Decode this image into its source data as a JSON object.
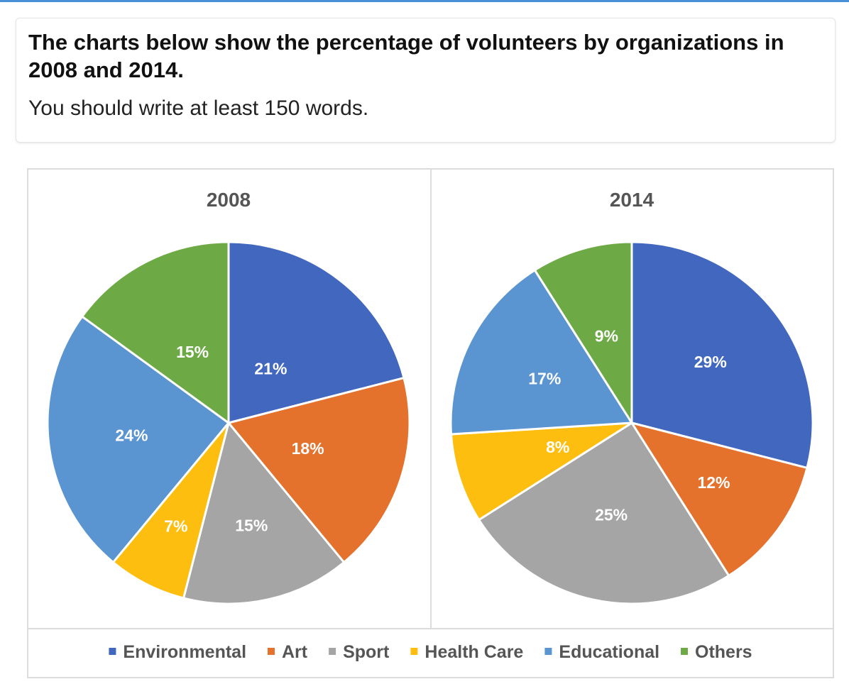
{
  "prompt": {
    "title": "The charts below show the percentage of volunteers by organizations in 2008 and 2014.",
    "instruction": "You should write at least 150 words."
  },
  "colors": {
    "Environmental": "#4267be",
    "Art": "#e4722c",
    "Sport": "#a5a5a5",
    "Health Care": "#fdbe10",
    "Educational": "#5a95d2",
    "Others": "#6daa45",
    "label": "#ffffff"
  },
  "chart_data": [
    {
      "type": "pie",
      "title": "2008",
      "categories": [
        "Environmental",
        "Art",
        "Sport",
        "Health Care",
        "Educational",
        "Others"
      ],
      "values": [
        21,
        18,
        15,
        7,
        24,
        15
      ],
      "labels": [
        "21%",
        "18%",
        "15%",
        "7%",
        "24%",
        "15%"
      ],
      "start": "12 o'clock, clockwise",
      "legend": "bottom"
    },
    {
      "type": "pie",
      "title": "2014",
      "categories": [
        "Environmental",
        "Art",
        "Sport",
        "Health Care",
        "Educational",
        "Others"
      ],
      "values": [
        29,
        12,
        25,
        8,
        17,
        9
      ],
      "labels": [
        "29%",
        "12%",
        "25%",
        "8%",
        "17%",
        "9%"
      ],
      "start": "12 o'clock, clockwise",
      "legend": "bottom"
    }
  ],
  "legend": [
    "Environmental",
    "Art",
    "Sport",
    "Health Care",
    "Educational",
    "Others"
  ]
}
